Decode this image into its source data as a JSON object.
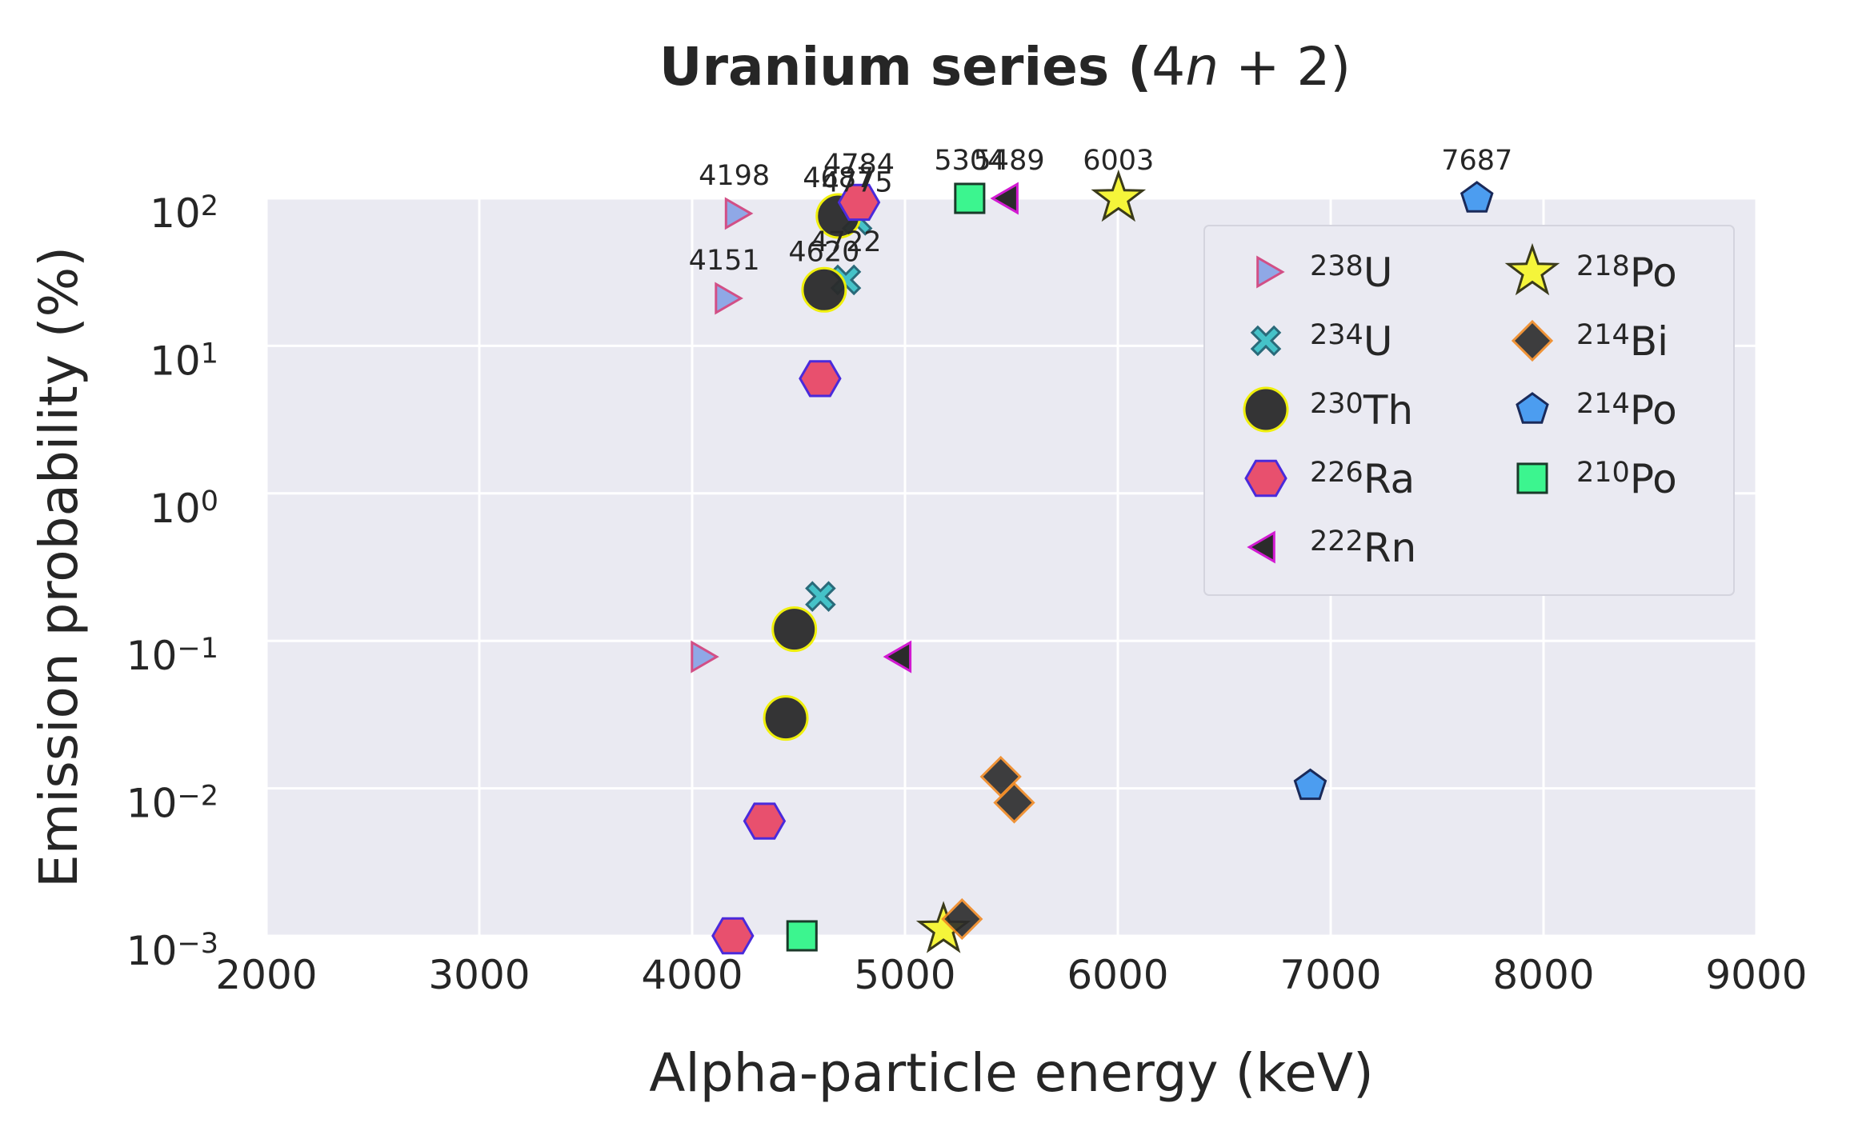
{
  "chart_data": {
    "type": "scatter",
    "title": "Uranium series (4n + 2)",
    "title_parts": {
      "main": "Uranium series (",
      "expr": "4",
      "var": "n",
      "rest": " + 2)"
    },
    "xlabel": "Alpha-particle energy (keV)",
    "ylabel": "Emission probability (%)",
    "xlim": [
      2000,
      9000
    ],
    "ylim": [
      0.001,
      100
    ],
    "yscale": "log",
    "grid": true,
    "background": "#eaeaf2",
    "x_ticks": [
      {
        "value": 2000,
        "label": "2000"
      },
      {
        "value": 3000,
        "label": "3000"
      },
      {
        "value": 4000,
        "label": "4000"
      },
      {
        "value": 5000,
        "label": "5000"
      },
      {
        "value": 6000,
        "label": "6000"
      },
      {
        "value": 7000,
        "label": "7000"
      },
      {
        "value": 8000,
        "label": "8000"
      },
      {
        "value": 9000,
        "label": "9000"
      }
    ],
    "y_ticks": [
      {
        "value": 100,
        "base": "10",
        "exp": "2"
      },
      {
        "value": 10,
        "base": "10",
        "exp": "1"
      },
      {
        "value": 1,
        "base": "10",
        "exp": "0"
      },
      {
        "value": 0.1,
        "base": "10",
        "exp": "−1"
      },
      {
        "value": 0.01,
        "base": "10",
        "exp": "−2"
      },
      {
        "value": 0.001,
        "base": "10",
        "exp": "−3"
      }
    ],
    "legend_position": "upper-right",
    "series": [
      {
        "name": "U",
        "mass": "238",
        "marker": "triangle-right",
        "color": "#8fa8e6",
        "edge": "#d24f86",
        "size": 46,
        "points": [
          {
            "x": 4198,
            "y": 79
          },
          {
            "x": 4151,
            "y": 21
          },
          {
            "x": 4038,
            "y": 0.078
          }
        ]
      },
      {
        "name": "U",
        "mass": "234",
        "marker": "x-filled",
        "color": "#45c2c8",
        "edge": "#2a6a7a",
        "size": 44,
        "points": [
          {
            "x": 4775,
            "y": 71
          },
          {
            "x": 4722,
            "y": 28
          },
          {
            "x": 4603,
            "y": 0.2
          }
        ]
      },
      {
        "name": "Th",
        "mass": "230",
        "marker": "circle",
        "color": "#2b2b2b",
        "edge": "#f0f000",
        "size": 54,
        "points": [
          {
            "x": 4687,
            "y": 76
          },
          {
            "x": 4620,
            "y": 24
          },
          {
            "x": 4480,
            "y": 0.12
          },
          {
            "x": 4440,
            "y": 0.03
          }
        ]
      },
      {
        "name": "Ra",
        "mass": "226",
        "marker": "hexagon",
        "color": "#e8506e",
        "edge": "#4a2adb",
        "size": 50,
        "points": [
          {
            "x": 4784,
            "y": 94
          },
          {
            "x": 4601,
            "y": 6
          },
          {
            "x": 4340,
            "y": 0.006
          },
          {
            "x": 4191,
            "y": 0.001
          }
        ]
      },
      {
        "name": "Rn",
        "mass": "222",
        "marker": "triangle-left",
        "color": "#2b2b2b",
        "edge": "#d21ad2",
        "size": 46,
        "points": [
          {
            "x": 5489,
            "y": 100
          },
          {
            "x": 4986,
            "y": 0.078
          }
        ]
      },
      {
        "name": "Po",
        "mass": "218",
        "marker": "star",
        "color": "#f5f53a",
        "edge": "#3a3a1a",
        "size": 60,
        "points": [
          {
            "x": 6003,
            "y": 100
          },
          {
            "x": 5181,
            "y": 0.0011
          }
        ]
      },
      {
        "name": "Bi",
        "mass": "214",
        "marker": "diamond",
        "color": "#2b2b2b",
        "edge": "#f08a24",
        "size": 48,
        "points": [
          {
            "x": 5450,
            "y": 0.012
          },
          {
            "x": 5513,
            "y": 0.008
          },
          {
            "x": 5268,
            "y": 0.0013
          }
        ]
      },
      {
        "name": "Po",
        "mass": "214",
        "marker": "pentagon",
        "color": "#4c9df0",
        "edge": "#1a2a5a",
        "size": 40,
        "points": [
          {
            "x": 7687,
            "y": 100
          },
          {
            "x": 6904,
            "y": 0.0104
          }
        ]
      },
      {
        "name": "Po",
        "mass": "210",
        "marker": "square",
        "color": "#3cf58f",
        "edge": "#1a3a2a",
        "size": 44,
        "points": [
          {
            "x": 5304,
            "y": 100
          },
          {
            "x": 4516,
            "y": 0.001
          }
        ]
      }
    ],
    "annotations": [
      {
        "text": "4198",
        "x": 4198,
        "y": 79
      },
      {
        "text": "4151",
        "x": 4151,
        "y": 21
      },
      {
        "text": "4687",
        "x": 4687,
        "y": 76
      },
      {
        "text": "4620",
        "x": 4620,
        "y": 24
      },
      {
        "text": "4784",
        "x": 4784,
        "y": 94
      },
      {
        "text": "4775",
        "x": 4775,
        "y": 71
      },
      {
        "text": "4722",
        "x": 4722,
        "y": 28
      },
      {
        "text": "5304",
        "x": 5304,
        "y": 100
      },
      {
        "text": "5489",
        "x": 5489,
        "y": 100
      },
      {
        "text": "6003",
        "x": 6003,
        "y": 100
      },
      {
        "text": "7687",
        "x": 7687,
        "y": 100
      }
    ]
  }
}
